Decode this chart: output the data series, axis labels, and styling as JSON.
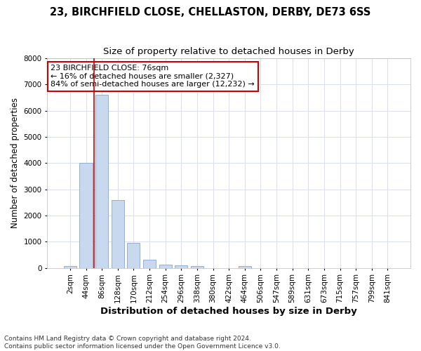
{
  "title_line1": "23, BIRCHFIELD CLOSE, CHELLASTON, DERBY, DE73 6SS",
  "title_line2": "Size of property relative to detached houses in Derby",
  "xlabel": "Distribution of detached houses by size in Derby",
  "ylabel": "Number of detached properties",
  "bar_values": [
    75,
    4000,
    6600,
    2600,
    950,
    320,
    130,
    90,
    70,
    0,
    0,
    70,
    0,
    0,
    0,
    0,
    0,
    0,
    0,
    0,
    0
  ],
  "x_labels": [
    "2sqm",
    "44sqm",
    "86sqm",
    "128sqm",
    "170sqm",
    "212sqm",
    "254sqm",
    "296sqm",
    "338sqm",
    "380sqm",
    "422sqm",
    "464sqm",
    "506sqm",
    "547sqm",
    "589sqm",
    "631sqm",
    "673sqm",
    "715sqm",
    "757sqm",
    "799sqm",
    "841sqm"
  ],
  "bar_color": "#c8d8ee",
  "bar_edge_color": "#7fa8d0",
  "background_color": "#ffffff",
  "fig_background_color": "#ffffff",
  "grid_color": "#d8dff0",
  "vline_x_index": 1.5,
  "vline_color": "#cc0000",
  "annotation_text": "23 BIRCHFIELD CLOSE: 76sqm\n← 16% of detached houses are smaller (2,327)\n84% of semi-detached houses are larger (12,232) →",
  "annotation_box_facecolor": "#ffffff",
  "annotation_box_edgecolor": "#cc0000",
  "ylim": [
    0,
    8000
  ],
  "yticks": [
    0,
    1000,
    2000,
    3000,
    4000,
    5000,
    6000,
    7000,
    8000
  ],
  "footnote": "Contains HM Land Registry data © Crown copyright and database right 2024.\nContains public sector information licensed under the Open Government Licence v3.0.",
  "title_fontsize": 10.5,
  "subtitle_fontsize": 9.5,
  "xlabel_fontsize": 9.5,
  "ylabel_fontsize": 8.5,
  "tick_fontsize": 7.5,
  "annotation_fontsize": 8,
  "footnote_fontsize": 6.5
}
